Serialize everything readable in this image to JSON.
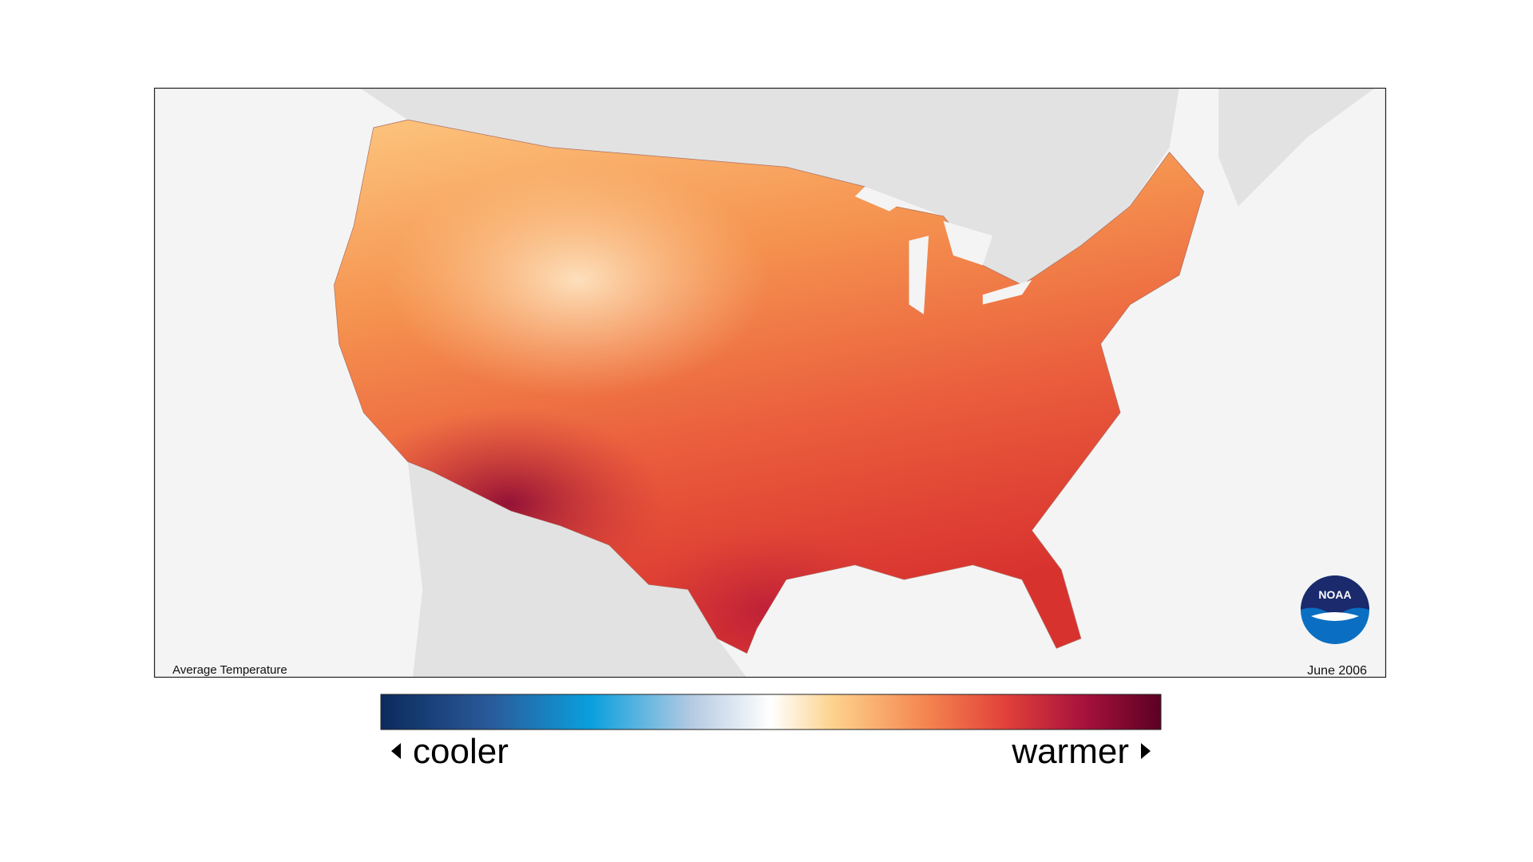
{
  "map": {
    "label": "Average Temperature",
    "date": "June 2006",
    "logo": "NOAA"
  },
  "legend": {
    "low_label": "cooler",
    "high_label": "warmer"
  }
}
